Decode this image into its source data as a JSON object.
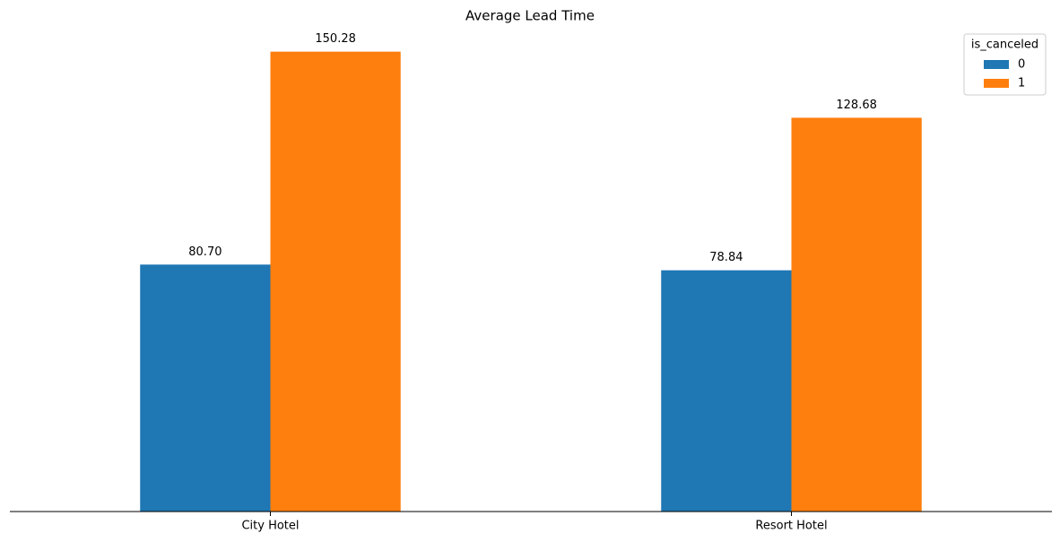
{
  "chart_data": {
    "type": "bar",
    "title": "Average Lead Time",
    "categories": [
      "City Hotel",
      "Resort Hotel"
    ],
    "series": [
      {
        "name": "0",
        "color": "#1f77b4",
        "values": [
          80.7,
          78.84
        ],
        "value_labels": [
          "80.70",
          "78.84"
        ]
      },
      {
        "name": "1",
        "color": "#ff7f0e",
        "values": [
          150.28,
          128.68
        ],
        "value_labels": [
          "150.28",
          "128.68"
        ]
      }
    ],
    "ylim": [
      0,
      157.79
    ],
    "legend": {
      "title": "is_canceled",
      "loc": "upper right"
    }
  }
}
